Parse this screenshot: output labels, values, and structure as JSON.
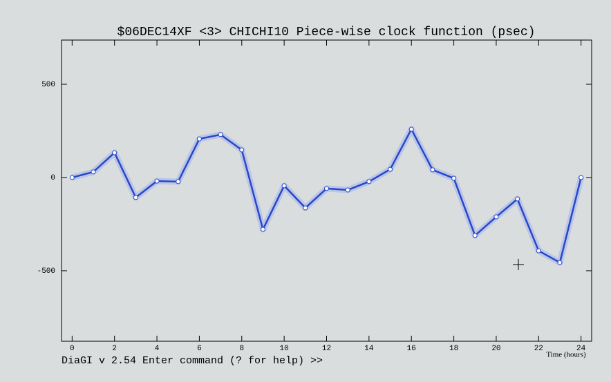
{
  "chart_data": {
    "type": "line",
    "title": "$06DEC14XF <3>  CHICHI10  Piece-wise clock function (psec)",
    "x_label": "Time (hours)",
    "status_line": "DiaGI v 2.54  Enter command (? for help) >>",
    "x": [
      0,
      1,
      2,
      3,
      4,
      5,
      6,
      7,
      8,
      9,
      10,
      11,
      12,
      13,
      14,
      15,
      16,
      17,
      18,
      19,
      20,
      21,
      22,
      23,
      24
    ],
    "values": [
      0,
      30,
      133,
      -107,
      -19,
      -22,
      207,
      230,
      148,
      -278,
      -44,
      -163,
      -59,
      -67,
      -22,
      44,
      259,
      41,
      -4,
      -311,
      -211,
      -115,
      -393,
      -456,
      0
    ],
    "color": "#2448c8",
    "xlim": [
      -0.5,
      24.5
    ],
    "ylim": [
      -878,
      737
    ],
    "xticks": [
      0,
      2,
      4,
      6,
      8,
      10,
      12,
      14,
      16,
      18,
      20,
      22,
      24
    ],
    "yticks": [
      -500,
      0,
      500
    ]
  }
}
